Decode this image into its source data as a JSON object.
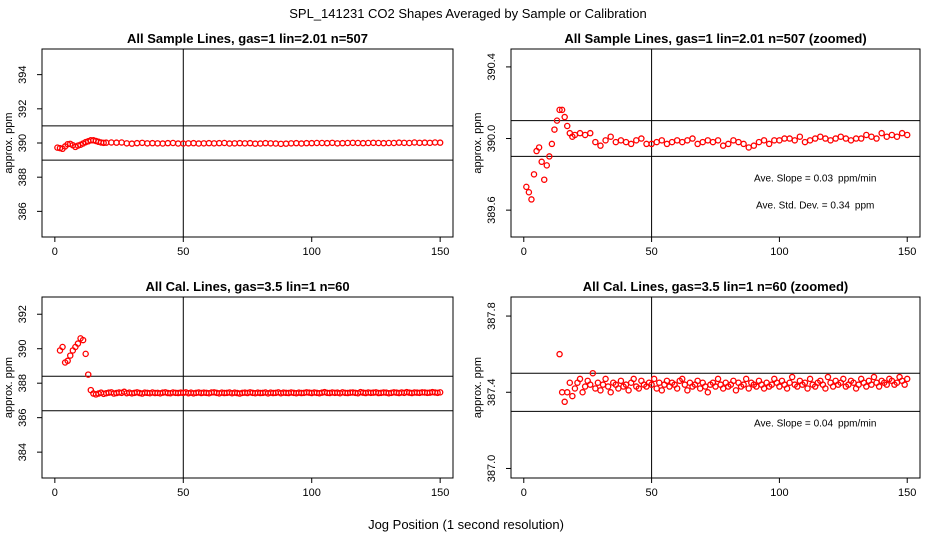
{
  "page_title": "SPL_141231  CO2 Shapes Averaged by Sample or Calibration",
  "xlabel": "Jog Position (1 second resolution)",
  "colors": {
    "points": "#ff0000",
    "lines": "#000000",
    "background": "#ffffff"
  },
  "chart_data": [
    {
      "type": "scatter",
      "title": "All Sample Lines, gas=1 lin=2.01 n=507",
      "ylabel": "approx. ppm",
      "xlim": [
        -5,
        155
      ],
      "ylim": [
        384.5,
        395.5
      ],
      "xticks": [
        0,
        50,
        100,
        150
      ],
      "yticks": [
        386,
        388,
        390,
        392,
        394
      ],
      "hlines": [
        391.0,
        389.0
      ],
      "vline": 50,
      "annotations": [],
      "series": [
        {
          "name": "sample",
          "profile": "sample"
        }
      ]
    },
    {
      "type": "scatter",
      "title": "All Sample Lines, gas=1 lin=2.01 n=507 (zoomed)",
      "ylabel": "approx. ppm",
      "xlim": [
        -5,
        155
      ],
      "ylim": [
        389.45,
        390.5
      ],
      "xticks": [
        0,
        50,
        100,
        150
      ],
      "yticks": [
        389.6,
        390.0,
        390.4
      ],
      "hlines": [
        390.1,
        389.9
      ],
      "vline": 50,
      "annotations": [
        {
          "label": "Ave. Slope = ",
          "value": "0.03",
          "unit": "ppm/min",
          "at": [
            114,
            389.76
          ]
        },
        {
          "label": "Ave. Std. Dev. = ",
          "value": "0.34",
          "unit": "ppm",
          "at": [
            114,
            389.61
          ]
        }
      ],
      "series": [
        {
          "name": "sample-zoomed",
          "profile": "sample"
        }
      ]
    },
    {
      "type": "scatter",
      "title": "All Cal. Lines, gas=3.5 lin=1 n=60",
      "ylabel": "approx. ppm",
      "xlim": [
        -5,
        155
      ],
      "ylim": [
        382.5,
        393.0
      ],
      "xticks": [
        0,
        50,
        100,
        150
      ],
      "yticks": [
        384,
        386,
        388,
        390,
        392
      ],
      "hlines": [
        388.4,
        386.4
      ],
      "vline": 50,
      "annotations": [],
      "series": [
        {
          "name": "calibration",
          "profile": "cal"
        }
      ]
    },
    {
      "type": "scatter",
      "title": "All Cal. Lines, gas=3.5 lin=1 n=60 (zoomed)",
      "ylabel": "approx. ppm",
      "xlim": [
        -5,
        155
      ],
      "ylim": [
        386.95,
        387.9
      ],
      "xticks": [
        0,
        50,
        100,
        150
      ],
      "yticks": [
        387.0,
        387.4,
        387.8
      ],
      "hlines": [
        387.5,
        387.3
      ],
      "vline": 50,
      "annotations": [
        {
          "label": "Ave. Slope = ",
          "value": "0.04",
          "unit": "ppm/min",
          "at": [
            114,
            387.22
          ]
        }
      ],
      "series": [
        {
          "name": "calibration-zoomed",
          "profile": "cal"
        }
      ]
    }
  ],
  "profiles": {
    "sample": {
      "x": [
        1,
        2,
        3,
        4,
        5,
        6,
        7,
        8,
        9,
        10,
        11,
        12,
        13,
        14,
        15,
        16,
        17,
        18,
        19,
        20,
        22,
        24,
        26,
        28,
        30,
        32,
        34,
        36,
        38,
        40,
        42,
        44,
        46,
        48,
        50,
        52,
        54,
        56,
        58,
        60,
        62,
        64,
        66,
        68,
        70,
        72,
        74,
        76,
        78,
        80,
        82,
        84,
        86,
        88,
        90,
        92,
        94,
        96,
        98,
        100,
        102,
        104,
        106,
        108,
        110,
        112,
        114,
        116,
        118,
        120,
        122,
        124,
        126,
        128,
        130,
        132,
        134,
        136,
        138,
        140,
        142,
        144,
        146,
        148,
        150
      ],
      "y": [
        389.73,
        389.7,
        389.66,
        389.8,
        389.93,
        389.95,
        389.87,
        389.77,
        389.85,
        389.9,
        389.97,
        390.05,
        390.1,
        390.16,
        390.16,
        390.12,
        390.07,
        390.03,
        390.01,
        390.02,
        390.03,
        390.02,
        390.03,
        389.98,
        389.96,
        389.99,
        390.01,
        389.98,
        389.99,
        389.98,
        389.97,
        389.99,
        390.0,
        389.97,
        389.97,
        389.98,
        389.99,
        389.97,
        389.98,
        389.99,
        389.98,
        389.99,
        390.0,
        389.97,
        389.98,
        389.99,
        389.98,
        389.99,
        389.96,
        389.97,
        389.99,
        389.98,
        389.97,
        389.95,
        389.96,
        389.98,
        389.99,
        389.97,
        389.99,
        389.99,
        390.0,
        390.0,
        389.99,
        390.01,
        389.98,
        389.99,
        390.0,
        390.01,
        390.0,
        389.99,
        390.0,
        390.01,
        390.0,
        389.99,
        390.0,
        390.0,
        390.02,
        390.01,
        390.0,
        390.03,
        390.01,
        390.02,
        390.01,
        390.03,
        390.02
      ]
    },
    "cal": {
      "x": [
        2,
        3,
        4,
        5,
        6,
        7,
        8,
        9,
        10,
        11,
        12,
        13,
        14,
        15,
        16,
        17,
        18,
        19,
        20,
        21,
        22,
        23,
        24,
        25,
        26,
        27,
        28,
        29,
        30,
        31,
        32,
        33,
        34,
        35,
        36,
        37,
        38,
        39,
        40,
        41,
        42,
        43,
        44,
        45,
        46,
        47,
        48,
        49,
        50,
        51,
        52,
        53,
        54,
        55,
        56,
        57,
        58,
        59,
        60,
        61,
        62,
        63,
        64,
        65,
        66,
        67,
        68,
        69,
        70,
        71,
        72,
        73,
        74,
        75,
        76,
        77,
        78,
        79,
        80,
        81,
        82,
        83,
        84,
        85,
        86,
        87,
        88,
        89,
        90,
        91,
        92,
        93,
        94,
        95,
        96,
        97,
        98,
        99,
        100,
        101,
        102,
        103,
        104,
        105,
        106,
        107,
        108,
        109,
        110,
        111,
        112,
        113,
        114,
        115,
        116,
        117,
        118,
        119,
        120,
        121,
        122,
        123,
        124,
        125,
        126,
        127,
        128,
        129,
        130,
        131,
        132,
        133,
        134,
        135,
        136,
        137,
        138,
        139,
        140,
        141,
        142,
        143,
        144,
        145,
        146,
        147,
        148,
        149,
        150
      ],
      "y": [
        389.9,
        390.1,
        389.2,
        389.3,
        389.6,
        389.9,
        390.1,
        390.3,
        390.6,
        390.5,
        389.7,
        388.5,
        387.6,
        387.4,
        387.35,
        387.4,
        387.45,
        387.38,
        387.42,
        387.45,
        387.47,
        387.4,
        387.43,
        387.46,
        387.44,
        387.5,
        387.42,
        387.45,
        387.41,
        387.44,
        387.47,
        387.43,
        387.4,
        387.45,
        387.44,
        387.42,
        387.46,
        387.43,
        387.44,
        387.41,
        387.45,
        387.47,
        387.43,
        387.42,
        387.46,
        387.44,
        387.43,
        387.45,
        387.44,
        387.47,
        387.42,
        387.45,
        387.41,
        387.44,
        387.46,
        387.43,
        387.45,
        387.44,
        387.42,
        387.46,
        387.47,
        387.44,
        387.41,
        387.45,
        387.43,
        387.44,
        387.46,
        387.42,
        387.45,
        387.43,
        387.4,
        387.44,
        387.45,
        387.43,
        387.47,
        387.44,
        387.42,
        387.45,
        387.43,
        387.44,
        387.46,
        387.41,
        387.45,
        387.43,
        387.44,
        387.47,
        387.42,
        387.45,
        387.44,
        387.43,
        387.46,
        387.44,
        387.42,
        387.45,
        387.43,
        387.44,
        387.47,
        387.45,
        387.43,
        387.46,
        387.44,
        387.42,
        387.45,
        387.48,
        387.44,
        387.43,
        387.46,
        387.44,
        387.45,
        387.42,
        387.47,
        387.44,
        387.43,
        387.45,
        387.46,
        387.44,
        387.42,
        387.48,
        387.45,
        387.43,
        387.46,
        387.44,
        387.45,
        387.47,
        387.43,
        387.44,
        387.46,
        387.45,
        387.42,
        387.44,
        387.47,
        387.45,
        387.43,
        387.46,
        387.44,
        387.48,
        387.45,
        387.43,
        387.46,
        387.45,
        387.44,
        387.47,
        387.46,
        387.44,
        387.45,
        387.48,
        387.46,
        387.44,
        387.47
      ]
    }
  }
}
